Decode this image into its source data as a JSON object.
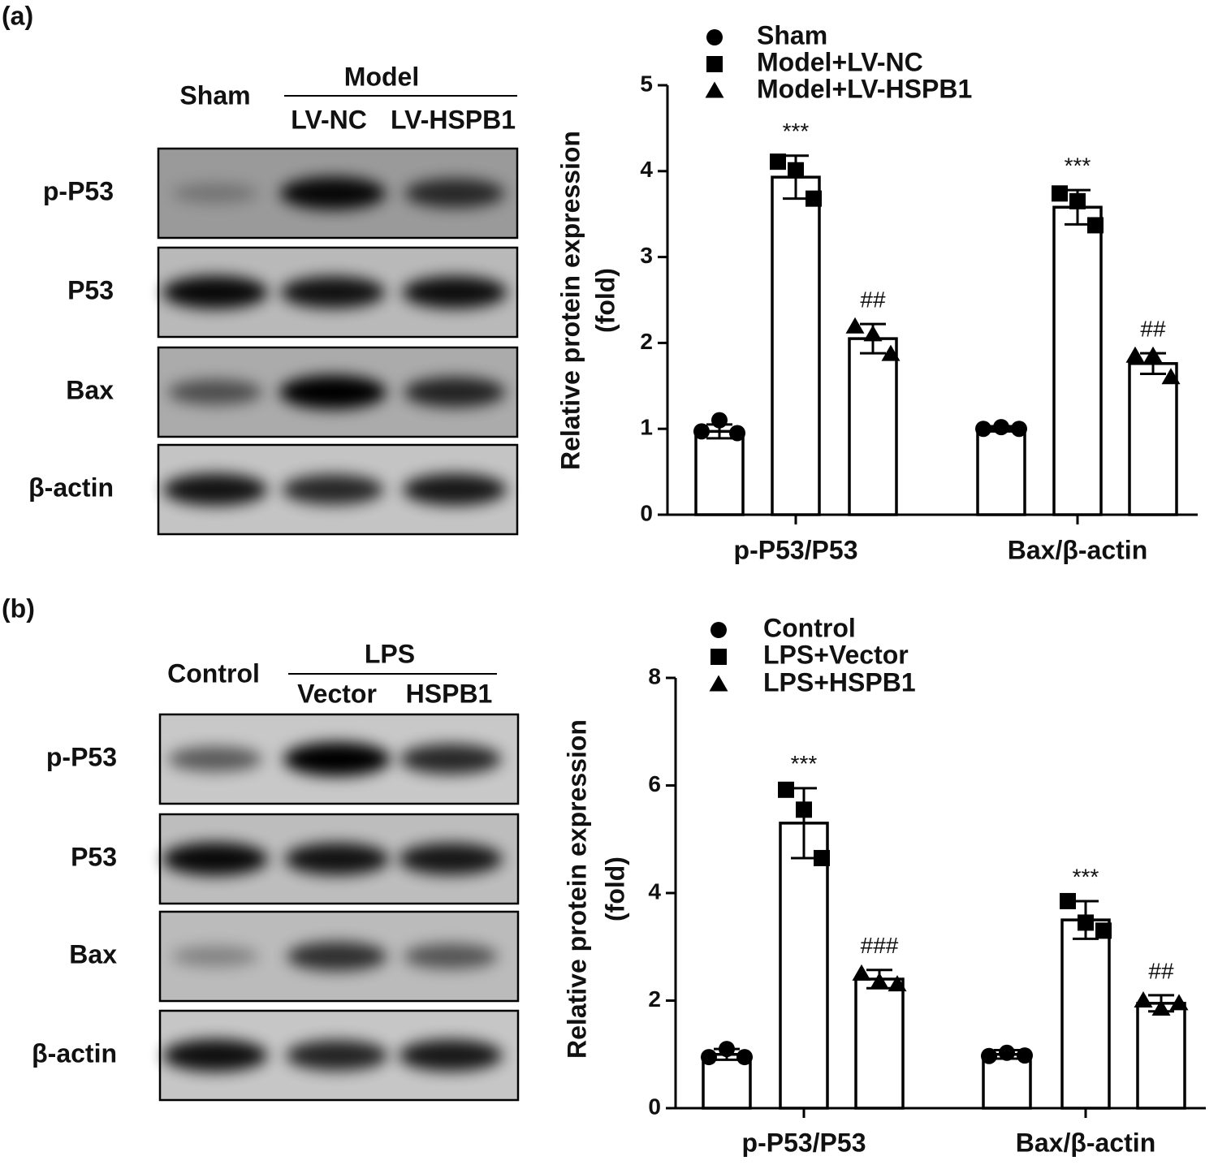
{
  "panel_labels": [
    "(a)",
    "(b)"
  ],
  "blots": [
    {
      "first_lane": "Sham",
      "group": "Model",
      "group_lanes": [
        "LV-NC",
        "LV-HSPB1"
      ],
      "rows": [
        "p-P53",
        "P53",
        "Bax",
        "β-actin"
      ]
    },
    {
      "first_lane": "Control",
      "group": "LPS",
      "group_lanes": [
        "Vector",
        "HSPB1"
      ],
      "rows": [
        "p-P53",
        "P53",
        "Bax",
        "β-actin"
      ]
    }
  ],
  "chart_data": [
    {
      "type": "bar",
      "ylabel": [
        "Relative protein expression",
        "(fold)"
      ],
      "categories": [
        "p-P53/P53",
        "Bax/β-actin"
      ],
      "ylim": [
        0,
        5
      ],
      "yticks": [
        0,
        1,
        2,
        3,
        4,
        5
      ],
      "series": [
        {
          "name": "Sham",
          "color": "#ffffff",
          "marker": "circle",
          "values": [
            0.97,
            1.0
          ],
          "errors": [
            0.08,
            0.03
          ],
          "points": [
            [
              0.97,
              1.1,
              0.95
            ],
            [
              1.0,
              1.02,
              1.0
            ]
          ]
        },
        {
          "name": "Model+LV-NC",
          "color": "#ffffff",
          "marker": "square",
          "values": [
            3.93,
            3.58
          ],
          "errors": [
            0.25,
            0.2
          ],
          "points": [
            [
              4.11,
              4.01,
              3.68
            ],
            [
              3.74,
              3.65,
              3.37
            ]
          ],
          "annotations": [
            "***",
            "***"
          ]
        },
        {
          "name": "Model+LV-HSPB1",
          "color": "#ffffff",
          "marker": "triangle",
          "values": [
            2.05,
            1.76
          ],
          "errors": [
            0.17,
            0.12
          ],
          "points": [
            [
              2.19,
              2.1,
              1.87
            ],
            [
              1.85,
              1.85,
              1.6
            ]
          ],
          "annotations": [
            "##",
            "##"
          ]
        }
      ]
    },
    {
      "type": "bar",
      "ylabel": [
        "Relative protein expression",
        "(fold)"
      ],
      "categories": [
        "p-P53/P53",
        "Bax/β-actin"
      ],
      "ylim": [
        0,
        8
      ],
      "yticks": [
        0,
        2,
        4,
        6,
        8
      ],
      "series": [
        {
          "name": "Control",
          "color": "#ffffff",
          "marker": "circle",
          "values": [
            1.0,
            1.0
          ],
          "errors": [
            0.1,
            0.08
          ],
          "points": [
            [
              0.95,
              1.1,
              0.95
            ],
            [
              0.97,
              1.03,
              0.98
            ]
          ]
        },
        {
          "name": "LPS+Vector",
          "color": "#ffffff",
          "marker": "square",
          "values": [
            5.3,
            3.5
          ],
          "errors": [
            0.65,
            0.35
          ],
          "points": [
            [
              5.92,
              5.55,
              4.65
            ],
            [
              3.85,
              3.45,
              3.3
            ]
          ],
          "annotations": [
            "***",
            "***"
          ]
        },
        {
          "name": "LPS+HSPB1",
          "color": "#ffffff",
          "marker": "triangle",
          "values": [
            2.4,
            1.95
          ],
          "errors": [
            0.17,
            0.15
          ],
          "points": [
            [
              2.5,
              2.35,
              2.3
            ],
            [
              2.0,
              1.85,
              1.95
            ]
          ],
          "annotations": [
            "###",
            "##"
          ]
        }
      ]
    }
  ]
}
